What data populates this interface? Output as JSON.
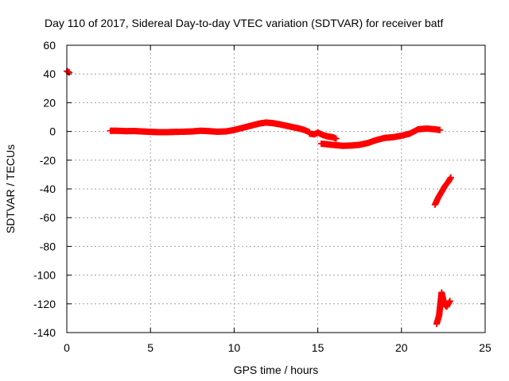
{
  "chart_data": {
    "type": "scatter",
    "title": "Day 110 of 2017, Sidereal Day-to-day VTEC variation (SDTVAR) for receiver batf",
    "xlabel": "GPS time / hours",
    "ylabel": "SDTVAR / TECUs",
    "xlim": [
      0,
      25
    ],
    "ylim": [
      -140,
      60
    ],
    "xticks": [
      0,
      5,
      10,
      15,
      20,
      25
    ],
    "yticks": [
      -140,
      -120,
      -100,
      -80,
      -60,
      -40,
      -20,
      0,
      20,
      40,
      60
    ],
    "grid": true,
    "legend": "none",
    "series": [
      {
        "name": "SDTVAR",
        "color": "#ff0000",
        "marker": "plus",
        "segments": [
          {
            "x": [
              0.0,
              0.08,
              0.15
            ],
            "y": [
              42,
              41.5,
              41
            ]
          },
          {
            "x": [
              2.6,
              3.0,
              3.5,
              4.0,
              4.5,
              5.0,
              5.5,
              6.0,
              6.5,
              7.0,
              7.5,
              8.0,
              8.5,
              9.0,
              9.5,
              10.0,
              10.5,
              11.0,
              11.5,
              11.9,
              12.3,
              12.7,
              13.1,
              13.5,
              13.9,
              14.2,
              14.5
            ],
            "y": [
              0.5,
              0.5,
              0.2,
              0.3,
              0.0,
              -0.3,
              -0.5,
              -0.5,
              -0.3,
              -0.2,
              0.0,
              0.5,
              0.2,
              -0.2,
              0.0,
              1.0,
              2.5,
              4.0,
              5.5,
              6.2,
              5.8,
              5.0,
              4.0,
              3.0,
              2.0,
              1.0,
              -0.5
            ]
          },
          {
            "x": [
              14.5,
              14.8,
              15.0,
              15.3,
              15.6,
              15.9,
              16.1
            ],
            "y": [
              -1.5,
              -2.0,
              -0.8,
              -2.5,
              -3.5,
              -4.0,
              -5.0
            ]
          },
          {
            "x": [
              15.2,
              15.6,
              16.0,
              16.5,
              17.0,
              17.5,
              18.0,
              18.5,
              19.0,
              19.5,
              20.0,
              20.5,
              21.0,
              21.5,
              22.0,
              22.3
            ],
            "y": [
              -8.5,
              -9.0,
              -9.5,
              -10.0,
              -9.8,
              -9.3,
              -8.0,
              -6.0,
              -4.5,
              -4.0,
              -3.0,
              -1.5,
              1.5,
              2.0,
              1.5,
              1.0
            ]
          },
          {
            "x": [
              22.0,
              22.2,
              22.4,
              22.6,
              22.8,
              22.95
            ],
            "y": [
              -51,
              -46,
              -42,
              -38,
              -35,
              -32
            ]
          },
          {
            "x": [
              22.1,
              22.25,
              22.4,
              22.55,
              22.7,
              22.9
            ],
            "y": [
              -134,
              -128,
              -112,
              -120,
              -122,
              -118
            ]
          }
        ]
      }
    ]
  }
}
